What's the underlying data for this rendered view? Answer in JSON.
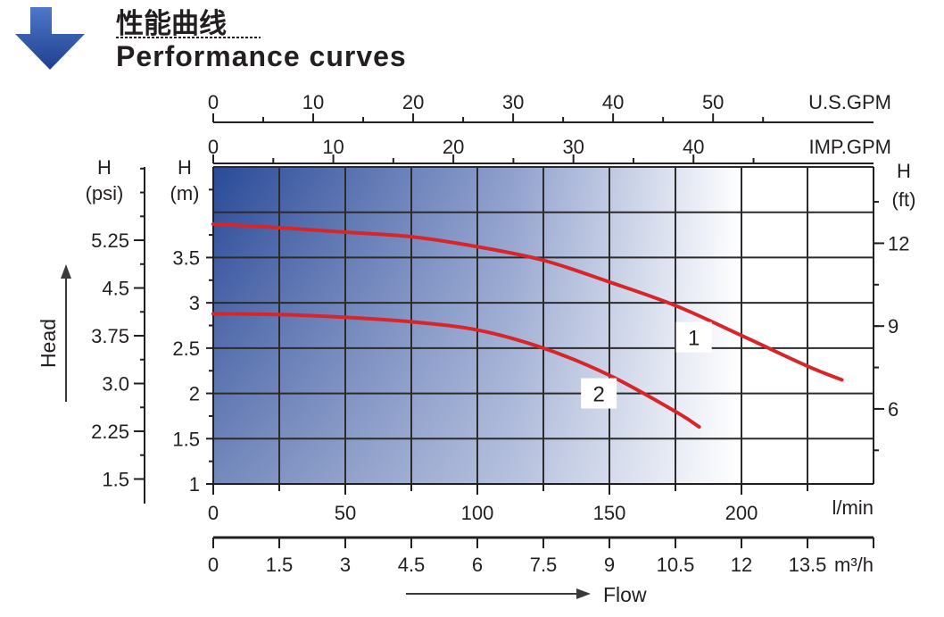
{
  "header": {
    "title_cn": "性能曲线",
    "title_en": "Performance curves",
    "accent_color": "#2a4d9c"
  },
  "chart_data": {
    "type": "line",
    "title": "Performance curves",
    "grid": true,
    "background": "gradient-blue-to-white",
    "xlim": [
      0,
      250
    ],
    "ylim": [
      1,
      4.5
    ],
    "axes": {
      "x_lmin": {
        "unit": "l/min",
        "ticks": [
          "0",
          "50",
          "100",
          "150",
          "200"
        ]
      },
      "x_m3h": {
        "unit": "m³/h",
        "ticks": [
          "0",
          "1.5",
          "3",
          "4.5",
          "6",
          "7.5",
          "9",
          "10.5",
          "12",
          "13.5"
        ]
      },
      "x_usgpm": {
        "unit": "U.S.GPM",
        "ticks": [
          "0",
          "10",
          "20",
          "30",
          "40",
          "50"
        ]
      },
      "x_impgpm": {
        "unit": "IMP.GPM",
        "ticks": [
          "0",
          "10",
          "20",
          "30",
          "40"
        ]
      },
      "y_m": {
        "label_top": "H",
        "label_unit": "(m)",
        "ticks": [
          "1",
          "1.5",
          "2",
          "2.5",
          "3",
          "3.5"
        ]
      },
      "y_psi": {
        "label_top": "H",
        "label_unit": "(psi)",
        "ticks": [
          "1.5",
          "2.25",
          "3.0",
          "3.75",
          "4.5",
          "5.25"
        ]
      },
      "y_ft": {
        "label_top": "H",
        "label_unit": "(ft)",
        "ticks": [
          "6",
          "9",
          "12"
        ]
      }
    },
    "xlabel": "Flow",
    "ylabel": "Head",
    "series": [
      {
        "name": "1",
        "color": "#d7262a",
        "x": [
          0,
          25,
          50,
          75,
          100,
          125,
          150,
          175,
          200,
          225,
          238
        ],
        "y": [
          3.87,
          3.83,
          3.78,
          3.73,
          3.62,
          3.47,
          3.23,
          2.97,
          2.64,
          2.3,
          2.15
        ]
      },
      {
        "name": "2",
        "color": "#d7262a",
        "x": [
          0,
          25,
          50,
          75,
          100,
          125,
          150,
          175,
          184
        ],
        "y": [
          2.88,
          2.87,
          2.84,
          2.79,
          2.7,
          2.5,
          2.2,
          1.8,
          1.63
        ]
      }
    ],
    "curve_labels": [
      "1",
      "2"
    ]
  }
}
